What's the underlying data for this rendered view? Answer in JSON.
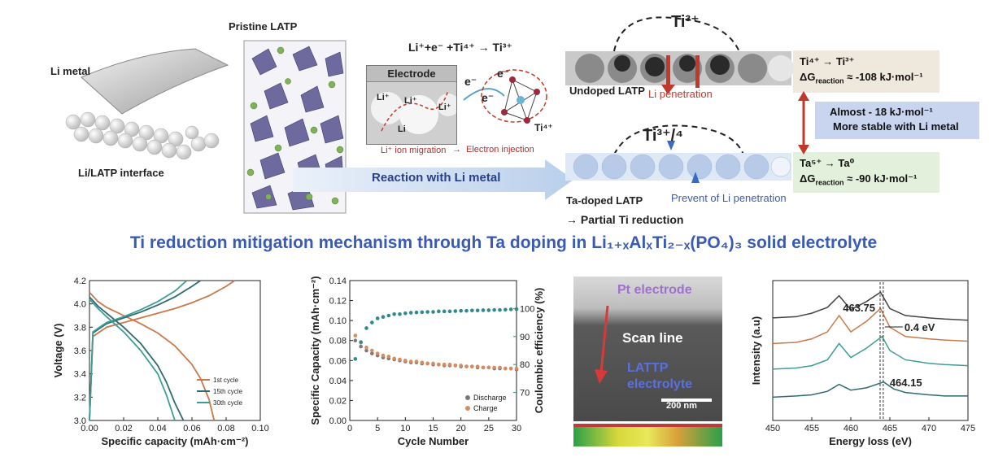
{
  "top": {
    "li_metal": "Li metal",
    "pristine_latp": "Pristine LATP",
    "interface": "Li/LATP interface",
    "reaction_eq": "Li⁺+e⁻ +Ti⁴⁺ → Ti³⁺",
    "electrode": "Electrode",
    "li_plus": "Li⁺",
    "li": "Li",
    "e_minus": "e⁻",
    "ti4": "Ti⁴⁺",
    "li_migration": "Li⁺ ion migration",
    "arrow_small": "→",
    "electron_injection": "Electron injection",
    "reaction_with_li": "Reaction with Li metal",
    "ti3": "Ti³⁺",
    "ti34": "Ti³⁺/⁴",
    "undoped": "Undoped LATP",
    "li_penetration": "Li penetration",
    "ta_doped": "Ta-doped LATP",
    "partial_reduction": "→ Partial Ti reduction",
    "prevent": "Prevent of Li penetration",
    "box1_line1": "Ti⁴⁺ → Ti³⁺",
    "box1_line2": "ΔG",
    "box1_sub": "reaction",
    "box1_val": " ≈ -108 kJ·mol⁻¹",
    "box2_line1": "Ta⁵⁺ → Ta⁰",
    "box2_line2": "ΔG",
    "box2_sub": "reaction",
    "box2_val": " ≈ -90 kJ·mol⁻¹",
    "stable_line1": "Almost - 18 kJ·mol⁻¹",
    "stable_line2": "More stable with Li metal"
  },
  "title": "Ti reduction mitigation mechanism through Ta doping in Li₁₊ₓAlₓTi₂₋ₓ(PO₄)₃ solid electrolyte",
  "tem": {
    "pt": "Pt electrode",
    "scan": "Scan line",
    "lattp1": "LATTP",
    "lattp2": "electrolyte",
    "scale": "200 nm"
  },
  "colors": {
    "cycle1": "#c8794a",
    "cycle15": "#2f6b72",
    "cycle30": "#3e9e96",
    "discharge": "#7a7a7a",
    "charge": "#d98a5f",
    "coulombic": "#2f8a8f",
    "title": "#3a5bb5"
  },
  "chart_data": [
    {
      "type": "line",
      "xlabel": "Specific capacity (mAh·cm⁻²)",
      "ylabel": "Voltage (V)",
      "xlim": [
        0.0,
        0.1
      ],
      "ylim": [
        3.0,
        4.2
      ],
      "xticks": [
        "0.00",
        "0.02",
        "0.04",
        "0.06",
        "0.08",
        "0.10"
      ],
      "yticks": [
        "3.0",
        "3.2",
        "3.4",
        "3.6",
        "3.8",
        "4.0",
        "4.2"
      ],
      "legend": "bottom-right",
      "series": [
        {
          "name": "1st cycle",
          "branch": "charge",
          "x": [
            0,
            0.002,
            0.01,
            0.02,
            0.03,
            0.04,
            0.05,
            0.06,
            0.07,
            0.08,
            0.085
          ],
          "y": [
            3.0,
            3.72,
            3.8,
            3.84,
            3.88,
            3.92,
            3.96,
            4.01,
            4.07,
            4.15,
            4.2
          ]
        },
        {
          "name": "1st cycle",
          "branch": "discharge",
          "x": [
            0,
            0.005,
            0.01,
            0.02,
            0.03,
            0.04,
            0.05,
            0.06,
            0.065,
            0.07,
            0.073
          ],
          "y": [
            4.1,
            4.02,
            3.97,
            3.9,
            3.83,
            3.75,
            3.64,
            3.48,
            3.36,
            3.18,
            3.0
          ]
        },
        {
          "name": "15th cycle",
          "branch": "charge",
          "x": [
            0,
            0.002,
            0.01,
            0.02,
            0.03,
            0.04,
            0.05,
            0.06,
            0.065
          ],
          "y": [
            3.0,
            3.75,
            3.83,
            3.88,
            3.93,
            3.99,
            4.06,
            4.15,
            4.2
          ]
        },
        {
          "name": "15th cycle",
          "branch": "discharge",
          "x": [
            0,
            0.005,
            0.01,
            0.02,
            0.03,
            0.04,
            0.045,
            0.05,
            0.055
          ],
          "y": [
            4.06,
            3.98,
            3.92,
            3.8,
            3.66,
            3.47,
            3.33,
            3.15,
            3.0
          ]
        },
        {
          "name": "30th cycle",
          "branch": "charge",
          "x": [
            0,
            0.002,
            0.01,
            0.02,
            0.03,
            0.04,
            0.05,
            0.057
          ],
          "y": [
            3.0,
            3.76,
            3.84,
            3.89,
            3.95,
            4.02,
            4.11,
            4.2
          ]
        },
        {
          "name": "30th cycle",
          "branch": "discharge",
          "x": [
            0,
            0.005,
            0.01,
            0.02,
            0.03,
            0.04,
            0.045,
            0.05
          ],
          "y": [
            4.04,
            3.96,
            3.89,
            3.76,
            3.6,
            3.4,
            3.22,
            3.0
          ]
        }
      ]
    },
    {
      "type": "scatter",
      "xlabel": "Cycle Number",
      "ylabel": "Specific Capacity (mAh·cm⁻²)",
      "y2label": "Coulombic efficiency (%)",
      "xlim": [
        0,
        30
      ],
      "ylim": [
        0.0,
        0.14
      ],
      "y2lim": [
        60,
        110
      ],
      "xticks": [
        "0",
        "5",
        "10",
        "15",
        "20",
        "25",
        "30"
      ],
      "yticks": [
        "0.00",
        "0.02",
        "0.04",
        "0.06",
        "0.08",
        "0.10",
        "0.12",
        "0.14"
      ],
      "y2ticks": [
        "70",
        "80",
        "90",
        "100"
      ],
      "legend": "bottom-right",
      "x": [
        1,
        2,
        3,
        4,
        5,
        6,
        7,
        8,
        9,
        10,
        11,
        12,
        13,
        14,
        15,
        16,
        17,
        18,
        19,
        20,
        21,
        22,
        23,
        24,
        25,
        26,
        27,
        28,
        29,
        30
      ],
      "series": [
        {
          "name": "Discharge",
          "axis": "left",
          "values": [
            0.08,
            0.074,
            0.07,
            0.067,
            0.065,
            0.063,
            0.062,
            0.061,
            0.06,
            0.059,
            0.058,
            0.058,
            0.057,
            0.057,
            0.056,
            0.056,
            0.055,
            0.055,
            0.055,
            0.054,
            0.054,
            0.054,
            0.053,
            0.053,
            0.053,
            0.052,
            0.052,
            0.052,
            0.052,
            0.051
          ]
        },
        {
          "name": "Charge",
          "axis": "left",
          "values": [
            0.085,
            0.078,
            0.073,
            0.07,
            0.067,
            0.065,
            0.064,
            0.062,
            0.061,
            0.06,
            0.059,
            0.059,
            0.058,
            0.057,
            0.057,
            0.056,
            0.056,
            0.056,
            0.055,
            0.055,
            0.054,
            0.054,
            0.054,
            0.053,
            0.053,
            0.053,
            0.053,
            0.052,
            0.052,
            0.052
          ]
        },
        {
          "name": "",
          "axis": "right",
          "values": [
            82,
            88,
            93,
            95,
            96.5,
            97,
            97.5,
            98,
            98,
            98.3,
            98.5,
            98.6,
            98.7,
            98.8,
            98.8,
            99,
            99,
            99,
            99.1,
            99.2,
            99.2,
            99.3,
            99.3,
            99.4,
            99.4,
            99.5,
            99.5,
            99.6,
            99.7,
            99.8
          ]
        }
      ]
    },
    {
      "type": "line",
      "xlabel": "Energy loss (eV)",
      "ylabel": "Intensity (a.u)",
      "xlim": [
        450,
        475
      ],
      "xticks": [
        "450",
        "455",
        "460",
        "465",
        "470",
        "475"
      ],
      "annotations": [
        "463.75",
        "0.4 eV",
        "464.15"
      ],
      "series": [
        {
          "name": "",
          "x": [
            450,
            453,
            455,
            457,
            458.5,
            460,
            462,
            463.8,
            465,
            467,
            470,
            472,
            475
          ],
          "y": [
            0.88,
            0.89,
            0.92,
            0.97,
            1.07,
            0.95,
            1.02,
            1.1,
            0.96,
            0.9,
            0.88,
            0.87,
            0.86
          ]
        },
        {
          "name": "",
          "x": [
            450,
            453,
            455,
            457,
            458.5,
            460,
            462,
            463.8,
            465,
            467,
            470,
            472,
            475
          ],
          "y": [
            0.66,
            0.67,
            0.7,
            0.76,
            0.9,
            0.76,
            0.85,
            0.96,
            0.8,
            0.72,
            0.7,
            0.69,
            0.68
          ]
        },
        {
          "name": "",
          "x": [
            450,
            453,
            455,
            457,
            458.5,
            460,
            462,
            464,
            465,
            467,
            470,
            472,
            475
          ],
          "y": [
            0.44,
            0.45,
            0.47,
            0.52,
            0.66,
            0.54,
            0.62,
            0.72,
            0.6,
            0.52,
            0.49,
            0.48,
            0.47
          ]
        },
        {
          "name": "",
          "x": [
            450,
            453,
            455,
            457,
            458.5,
            460,
            462,
            464.2,
            465.5,
            467,
            470,
            472,
            475
          ],
          "y": [
            0.2,
            0.21,
            0.22,
            0.25,
            0.31,
            0.26,
            0.28,
            0.33,
            0.27,
            0.24,
            0.22,
            0.21,
            0.21
          ]
        }
      ]
    }
  ]
}
